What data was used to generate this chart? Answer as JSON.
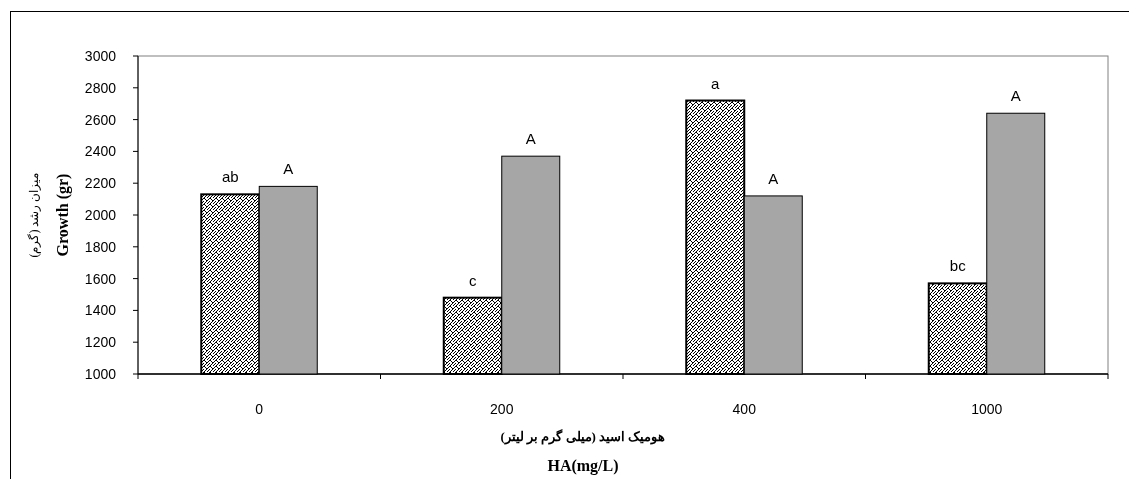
{
  "chart_data": {
    "type": "bar",
    "xlabel": "هومیک اسید (میلی گرم بر لیتر)\nHA(mg/L)",
    "ylabel": "میزان رشد (گرم)\nGrowth (gr)",
    "categories": [
      "0",
      "200",
      "400",
      "1000"
    ],
    "series": [
      {
        "color": "#000000",
        "values": [
          2130,
          1480,
          2720,
          1570
        ]
      },
      {
        "color": "#a6a6a6",
        "values": [
          2180,
          2370,
          2120,
          2640
        ]
      }
    ],
    "ylim": [
      1000,
      3000
    ],
    "yticks": [
      1000,
      1200,
      1400,
      1600,
      1800,
      2000,
      2200,
      2400,
      2600,
      2800,
      3000
    ],
    "grid": false,
    "annotations": [
      {
        "text": "ab",
        "x": "0",
        "y": 2130
      },
      {
        "text": "A",
        "x": "0",
        "y": 2180
      },
      {
        "text": "c",
        "x": "200",
        "y": 1480
      },
      {
        "text": "A",
        "x": "200",
        "y": 2370
      },
      {
        "text": "a",
        "x": "400",
        "y": 2720
      },
      {
        "text": "A",
        "x": "400",
        "y": 2120
      },
      {
        "text": "bc",
        "x": "1000",
        "y": 1570
      },
      {
        "text": "A",
        "x": "1000",
        "y": 2640
      }
    ]
  }
}
